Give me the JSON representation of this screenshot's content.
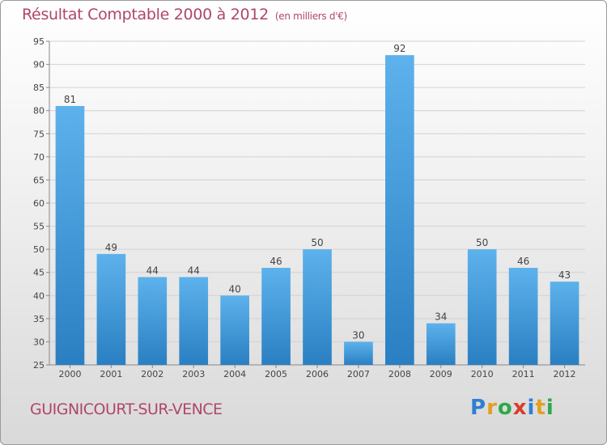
{
  "header": {
    "title": "Résultat Comptable 2000 à 2012",
    "subtitle": "(en milliers d'€)"
  },
  "footer": {
    "commune": "GUIGNICOURT-SUR-VENCE"
  },
  "logo": {
    "letters": [
      "P",
      "r",
      "o",
      "x",
      "i",
      "t",
      "i"
    ],
    "colors": [
      "#2f7fd1",
      "#e0a020",
      "#2ea84a",
      "#d93c2b",
      "#2f7fd1",
      "#e0a020",
      "#2ea84a"
    ]
  },
  "chart_data": {
    "type": "bar",
    "title": "Résultat Comptable 2000 à 2012",
    "subtitle": "(en milliers d'€)",
    "categories": [
      "2000",
      "2001",
      "2002",
      "2003",
      "2004",
      "2005",
      "2006",
      "2007",
      "2008",
      "2009",
      "2010",
      "2011",
      "2012"
    ],
    "values": [
      81,
      49,
      44,
      44,
      40,
      46,
      50,
      30,
      92,
      34,
      50,
      46,
      43
    ],
    "ylim": [
      25,
      95
    ],
    "yticks": [
      25,
      30,
      35,
      40,
      45,
      50,
      55,
      60,
      65,
      70,
      75,
      80,
      85,
      90,
      95
    ],
    "grid": true,
    "bar_color_top": "#5db2ec",
    "bar_color_bottom": "#2a7fc2",
    "xlabel": "",
    "ylabel": ""
  }
}
